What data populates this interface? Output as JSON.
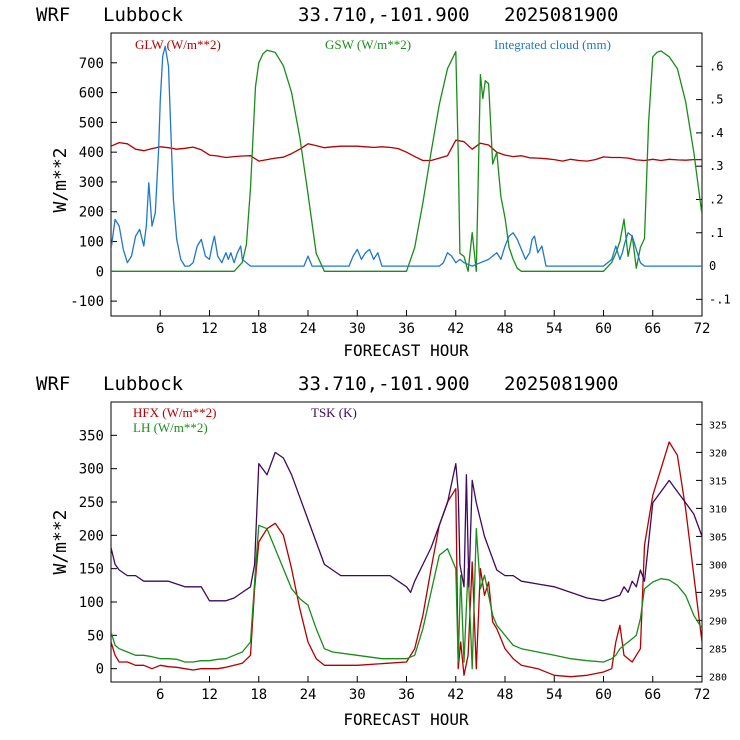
{
  "header": {
    "model": "WRF",
    "station": "Lubbock",
    "coords": "33.710,-101.900",
    "datetime": "2025081900"
  },
  "colors": {
    "red": "#b30000",
    "green": "#1a8c1a",
    "blue": "#1f78c8",
    "purple": "#3d0a5c",
    "axis": "#000000"
  },
  "chart_data": [
    {
      "type": "line",
      "xlabel": "FORECAST HOUR",
      "ylabel": "W/m**2",
      "xlim": [
        0,
        72
      ],
      "ylim": [
        -150,
        800
      ],
      "y2lim": [
        -0.15,
        0.7
      ],
      "xticks": [
        6,
        12,
        18,
        24,
        30,
        36,
        42,
        48,
        54,
        60,
        66,
        72
      ],
      "yticks": [
        -100,
        0,
        100,
        200,
        300,
        400,
        500,
        600,
        700
      ],
      "y2ticks": [
        -0.1,
        0,
        0.1,
        0.2,
        0.3,
        0.4,
        0.5,
        0.6
      ],
      "y2ticklabels": [
        "-.1",
        "0",
        ".1",
        ".2",
        ".3",
        ".4",
        ".5",
        ".6"
      ],
      "series": [
        {
          "name": "GLW (W/m**2)",
          "color": "red",
          "axis": "left",
          "x": [
            0,
            1,
            2,
            3,
            4,
            5,
            6,
            7,
            8,
            9,
            10,
            11,
            12,
            13,
            14,
            15,
            16,
            17,
            18,
            19,
            20,
            21,
            22,
            23,
            24,
            25,
            26,
            27,
            28,
            29,
            30,
            31,
            32,
            33,
            34,
            35,
            36,
            37,
            38,
            39,
            40,
            41,
            42,
            43,
            44,
            45,
            46,
            47,
            48,
            49,
            50,
            51,
            52,
            53,
            54,
            55,
            56,
            57,
            58,
            59,
            60,
            61,
            62,
            63,
            64,
            65,
            66,
            67,
            68,
            69,
            70,
            71,
            72
          ],
          "y": [
            420,
            432,
            428,
            410,
            405,
            412,
            418,
            415,
            410,
            413,
            417,
            408,
            390,
            387,
            382,
            385,
            387,
            388,
            370,
            375,
            380,
            383,
            395,
            410,
            428,
            422,
            415,
            418,
            420,
            420,
            420,
            418,
            416,
            418,
            416,
            412,
            400,
            385,
            372,
            372,
            380,
            388,
            440,
            435,
            410,
            430,
            424,
            400,
            390,
            385,
            388,
            381,
            380,
            378,
            375,
            370,
            376,
            372,
            370,
            375,
            384,
            382,
            382,
            380,
            374,
            372,
            376,
            372,
            376,
            374,
            373,
            375,
            375
          ]
        },
        {
          "name": "GSW (W/m**2)",
          "color": "green",
          "axis": "left",
          "x": [
            0,
            15,
            16,
            16.5,
            17,
            17.3,
            17.6,
            18,
            18.5,
            19,
            20,
            21,
            22,
            23,
            24,
            25,
            26,
            36,
            37,
            38,
            39,
            40,
            41,
            42,
            42.3,
            42.5,
            43,
            43.5,
            44,
            44.5,
            45,
            45.3,
            45.6,
            46,
            46.5,
            47,
            47.5,
            48,
            48.5,
            49,
            49.5,
            50,
            51,
            52,
            58,
            60,
            61,
            61.5,
            62,
            62.5,
            63,
            63.5,
            64,
            64.5,
            65,
            65.5,
            66,
            66.5,
            67,
            68,
            69,
            70,
            71,
            72
          ],
          "y": [
            0,
            0,
            30,
            90,
            280,
            450,
            620,
            700,
            730,
            742,
            735,
            690,
            600,
            450,
            260,
            60,
            0,
            0,
            80,
            230,
            400,
            560,
            680,
            738,
            400,
            60,
            50,
            0,
            130,
            0,
            660,
            580,
            640,
            630,
            360,
            400,
            250,
            180,
            80,
            40,
            10,
            0,
            0,
            0,
            0,
            0,
            30,
            60,
            100,
            175,
            50,
            120,
            10,
            80,
            110,
            500,
            720,
            735,
            740,
            720,
            680,
            570,
            400,
            190
          ]
        },
        {
          "name": "Integrated cloud (mm)",
          "color": "blue",
          "axis": "right",
          "x": [
            0,
            0.5,
            1,
            1.5,
            2,
            2.5,
            3,
            3.5,
            4,
            4.3,
            4.6,
            5,
            5.4,
            5.8,
            6,
            6.3,
            6.6,
            7,
            7.3,
            7.6,
            8,
            8.5,
            9,
            9.5,
            10,
            10.5,
            11,
            11.5,
            12,
            12.3,
            12.6,
            13,
            13.5,
            14,
            14.3,
            14.6,
            15,
            15.4,
            15.8,
            16,
            16.5,
            17,
            20,
            23.5,
            24,
            24.5,
            25,
            29,
            29.5,
            30,
            30.5,
            31,
            31.5,
            32,
            32.5,
            33,
            40,
            40.5,
            41,
            41.5,
            42,
            42.5,
            43,
            44,
            45,
            46,
            47,
            47.5,
            48,
            48.5,
            49,
            49.5,
            50,
            50.5,
            51,
            51.3,
            51.6,
            52,
            52.5,
            53,
            60,
            60.5,
            61,
            61.5,
            62,
            62.3,
            62.6,
            63,
            63.5,
            64,
            64.5,
            65,
            72
          ],
          "y": [
            0.05,
            0.14,
            0.12,
            0.05,
            0.01,
            0.03,
            0.09,
            0.11,
            0.06,
            0.12,
            0.25,
            0.12,
            0.16,
            0.35,
            0.5,
            0.63,
            0.66,
            0.6,
            0.4,
            0.2,
            0.08,
            0.02,
            0,
            0,
            0.01,
            0.06,
            0.08,
            0.03,
            0.02,
            0.06,
            0.09,
            0.03,
            0.01,
            0.04,
            0.02,
            0.04,
            0.01,
            0.04,
            0.06,
            0.02,
            0.01,
            0,
            0,
            0,
            0.03,
            0,
            0,
            0,
            0.03,
            0.05,
            0.02,
            0.04,
            0.05,
            0.02,
            0.04,
            0,
            0,
            0.01,
            0.04,
            0.03,
            0.01,
            0.02,
            0.01,
            0,
            0.01,
            0.02,
            0.04,
            0.02,
            0.06,
            0.09,
            0.1,
            0.08,
            0.05,
            0.02,
            0.04,
            0.08,
            0.09,
            0.04,
            0.06,
            0,
            0,
            0.01,
            0.02,
            0.06,
            0.02,
            0.04,
            0.07,
            0.1,
            0.09,
            0.05,
            0.01,
            0,
            0
          ]
        }
      ]
    },
    {
      "type": "line",
      "xlabel": "FORECAST HOUR",
      "ylabel": "W/m**2",
      "xlim": [
        0,
        72
      ],
      "ylim": [
        -20,
        400
      ],
      "y2lim": [
        279,
        329
      ],
      "xticks": [
        6,
        12,
        18,
        24,
        30,
        36,
        42,
        48,
        54,
        60,
        66,
        72
      ],
      "yticks": [
        0,
        50,
        100,
        150,
        200,
        250,
        300,
        350
      ],
      "y2ticks": [
        280,
        285,
        290,
        295,
        300,
        305,
        310,
        315,
        320,
        325
      ],
      "series": [
        {
          "name": "HFX (W/m**2)",
          "color": "red",
          "axis": "left",
          "x": [
            0,
            0.5,
            1,
            2,
            3,
            4,
            5,
            6,
            7,
            8,
            9,
            10,
            11,
            12,
            13,
            14,
            15,
            16,
            17,
            17.5,
            18,
            19,
            20,
            21,
            22,
            23,
            24,
            25,
            26,
            30,
            36,
            37,
            38,
            39,
            40,
            41,
            42,
            42.3,
            42.6,
            43,
            43.5,
            44,
            44.5,
            45,
            45.5,
            46,
            46.5,
            47,
            48,
            49,
            50,
            52,
            54,
            56,
            58,
            60,
            61,
            61.5,
            62,
            62.5,
            63,
            63.5,
            64,
            64.5,
            65,
            66,
            67,
            68,
            69,
            70,
            71,
            72
          ],
          "y": [
            40,
            20,
            10,
            10,
            5,
            5,
            0,
            5,
            3,
            2,
            0,
            -2,
            0,
            0,
            0,
            2,
            5,
            8,
            20,
            120,
            190,
            210,
            218,
            200,
            150,
            90,
            40,
            15,
            5,
            5,
            10,
            30,
            80,
            150,
            215,
            250,
            270,
            0,
            40,
            -10,
            20,
            160,
            0,
            150,
            110,
            130,
            70,
            60,
            30,
            15,
            5,
            0,
            -10,
            -12,
            -10,
            -5,
            0,
            40,
            65,
            20,
            15,
            10,
            20,
            30,
            185,
            260,
            300,
            340,
            320,
            240,
            140,
            40
          ]
        },
        {
          "name": "LH (W/m**2)",
          "color": "green",
          "axis": "left",
          "x": [
            0,
            0.5,
            1,
            2,
            3,
            4,
            5,
            6,
            7,
            8,
            9,
            10,
            11,
            12,
            13,
            14,
            15,
            16,
            17,
            17.5,
            18,
            19,
            20,
            21,
            22,
            23,
            24,
            25,
            26,
            27,
            30,
            33,
            36,
            37,
            38,
            39,
            40,
            41,
            42,
            42.3,
            42.6,
            43,
            43.5,
            44,
            44.5,
            45,
            45.5,
            46,
            46.5,
            47,
            48,
            49,
            50,
            52,
            54,
            56,
            58,
            60,
            61,
            61.5,
            62,
            62.5,
            63,
            63.5,
            64,
            64.5,
            65,
            66,
            67,
            68,
            69,
            70,
            71,
            72
          ],
          "y": [
            55,
            35,
            30,
            25,
            20,
            20,
            18,
            15,
            15,
            14,
            10,
            10,
            12,
            12,
            14,
            15,
            20,
            25,
            40,
            130,
            215,
            210,
            180,
            150,
            120,
            105,
            95,
            60,
            30,
            25,
            20,
            15,
            15,
            20,
            60,
            115,
            170,
            180,
            150,
            10,
            140,
            10,
            150,
            0,
            210,
            120,
            140,
            110,
            80,
            65,
            50,
            35,
            30,
            25,
            20,
            15,
            12,
            10,
            15,
            20,
            30,
            35,
            40,
            45,
            50,
            75,
            120,
            130,
            135,
            133,
            125,
            110,
            80,
            60
          ]
        },
        {
          "name": "TSK (K)",
          "color": "purple",
          "axis": "right",
          "x": [
            0,
            0.5,
            1,
            2,
            3,
            4,
            5,
            6,
            7,
            8,
            9,
            10,
            11,
            12,
            13,
            14,
            15,
            16,
            17,
            17.5,
            18,
            19,
            20,
            21,
            22,
            23,
            24,
            25,
            26,
            28,
            30,
            32,
            34,
            36,
            36.5,
            37,
            38,
            39,
            40,
            41,
            42,
            42.3,
            42.5,
            43,
            43.3,
            43.6,
            44,
            44.5,
            45,
            45.5,
            46,
            47,
            48,
            49,
            50,
            52,
            54,
            56,
            58,
            60,
            61,
            62,
            62.5,
            63,
            63.5,
            64,
            64.5,
            65,
            66,
            67,
            68,
            69,
            70,
            71,
            72
          ],
          "y": [
            303,
            300,
            299,
            298,
            298,
            297,
            297,
            297,
            297,
            296.5,
            296,
            296,
            296,
            293.5,
            293.5,
            293.5,
            294,
            295,
            296,
            300,
            318,
            316,
            320,
            319,
            316,
            312,
            308,
            304,
            300,
            298,
            298,
            298,
            298,
            296,
            295,
            297,
            300,
            303,
            307,
            311,
            318,
            313,
            300,
            296,
            316,
            296,
            315,
            311,
            308,
            305,
            303,
            299,
            298,
            298,
            297,
            296.5,
            296,
            295,
            294,
            293.5,
            294,
            294.5,
            296,
            295,
            297,
            296,
            299,
            297,
            311,
            313,
            315,
            313,
            311,
            309,
            305
          ]
        }
      ]
    }
  ]
}
